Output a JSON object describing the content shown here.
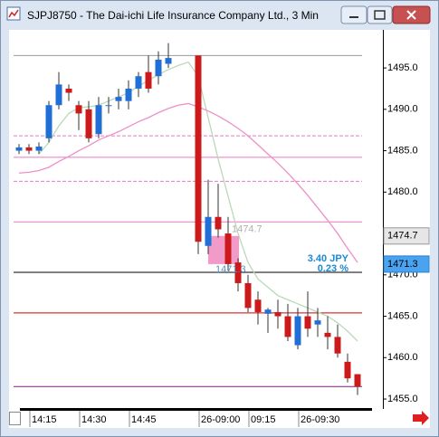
{
  "chart_data": {
    "type": "candlestick",
    "title": "SJPJ8750 - The Dai-ichi Life Insurance Company Ltd., 3 Min",
    "categories": [
      null,
      "14:15",
      null,
      null,
      null,
      null,
      "14:30",
      null,
      null,
      null,
      null,
      "14:45",
      null,
      null,
      null,
      null,
      null,
      null,
      "26-09:00",
      null,
      null,
      null,
      null,
      "09:15",
      null,
      null,
      null,
      null,
      "26-09:30",
      null,
      null,
      null,
      null,
      null,
      null
    ],
    "open": [
      1485.0,
      1485.4,
      1485.0,
      1486.5,
      1490.5,
      1492.5,
      1490.5,
      1490.0,
      1487.0,
      1490.5,
      1491.0,
      1491.0,
      1492.5,
      1494.5,
      1494.0,
      1495.5,
      null,
      null,
      1496.5,
      1473.5,
      1477.0,
      1475.0,
      1471.5,
      1469.0,
      1467.0,
      1465.3,
      1465.5,
      1465.0,
      1461.5,
      1465.0,
      1464.0,
      1463.0,
      1462.5,
      1459.5,
      1458.0
    ],
    "high": [
      1485.8,
      1485.8,
      1486.0,
      1491.0,
      1494.5,
      1493.0,
      1491.0,
      1491.0,
      1491.5,
      1491.5,
      1492.5,
      1493.5,
      1494.5,
      1496.5,
      1497.0,
      1498.0,
      null,
      null,
      1496.5,
      1481.5,
      1481.0,
      1477.0,
      1472.0,
      1470.0,
      1468.0,
      1466.0,
      1467.0,
      1466.5,
      1466.0,
      1468.0,
      1466.0,
      1465.0,
      1464.0,
      1460.5,
      1458.0
    ],
    "low": [
      1484.6,
      1484.6,
      1484.6,
      1486.0,
      1490.0,
      1491.0,
      1487.5,
      1486.0,
      1486.5,
      1489.5,
      1490.0,
      1490.0,
      1491.5,
      1492.0,
      1493.0,
      1495.0,
      null,
      null,
      1472.5,
      1472.5,
      1474.5,
      1470.5,
      1468.0,
      1465.5,
      1464.0,
      1463.0,
      1463.5,
      1462.0,
      1461.0,
      1462.5,
      1462.5,
      1461.0,
      1460.0,
      1457.0,
      1455.5
    ],
    "close": [
      1485.4,
      1485.0,
      1485.5,
      1490.5,
      1493.0,
      1492.0,
      1489.5,
      1486.5,
      1490.5,
      1490.5,
      1491.5,
      1492.5,
      1494.0,
      1492.5,
      1496.0,
      1496.2,
      null,
      null,
      1474.0,
      1477.0,
      1475.5,
      1471.3,
      1469.0,
      1466.0,
      1465.5,
      1465.8,
      1465.0,
      1462.5,
      1465.0,
      1463.5,
      1464.5,
      1462.5,
      1460.5,
      1457.5,
      1456.5
    ],
    "up_color": "#1f6fd6",
    "down_color": "#cc1a1a",
    "moving_averages": [
      {
        "color": "#b9d9b9",
        "values": [
          null,
          null,
          1484.6,
          1486,
          1488,
          1489.5,
          1490.2,
          1490.3,
          1490.5,
          1491,
          1491.5,
          1492,
          1492.8,
          1493.5,
          1494.2,
          1494.8,
          1495.3,
          1495.7,
          1494,
          1489,
          1484,
          1479.5,
          1475,
          1471.5,
          1469.5,
          1468.5,
          1467.5,
          1467,
          1466.5,
          1466,
          1465.5,
          1465,
          1464.2,
          1463.2,
          1462
        ]
      },
      {
        "color": "#ee8fc8",
        "values": [
          1482.3,
          1482.4,
          1482.6,
          1483,
          1483.7,
          1484.3,
          1485,
          1485.6,
          1486.3,
          1486.8,
          1487.3,
          1487.9,
          1488.5,
          1489,
          1489.6,
          1490.1,
          1490.5,
          1490.7,
          1490.3,
          1489.8,
          1489.2,
          1488.5,
          1487.7,
          1486.8,
          1485.7,
          1484.6,
          1483.5,
          1482.3,
          1481,
          1479.6,
          1478.1,
          1476.6,
          1475,
          1473.2,
          1471.5
        ]
      }
    ],
    "levels": [
      {
        "value": 1496.5,
        "color": "#9a9a9a",
        "dashed": false
      },
      {
        "value": 1486.8,
        "color": "#e77bbf",
        "dashed": true
      },
      {
        "value": 1484.2,
        "color": "#e77bbf",
        "dashed": false
      },
      {
        "value": 1481.3,
        "color": "#e77bbf",
        "dashed": true
      },
      {
        "value": 1476.4,
        "color": "#e77bbf",
        "dashed": false
      },
      {
        "value": 1470.3,
        "color": "#000000",
        "dashed": false
      },
      {
        "value": 1465.4,
        "color": "#d00000",
        "dashed": false
      },
      {
        "value": 1456.5,
        "color": "#7a1f7a",
        "dashed": false
      }
    ],
    "measure": {
      "from": 1474.7,
      "to": 1471.3,
      "change": "3.40 JPY",
      "percent": "0.23 %",
      "color": "#f29bc9"
    },
    "ylim": [
      1453.8,
      1499.6
    ],
    "yticks": [
      {
        "value": 1455,
        "label": "1455.0"
      },
      {
        "value": 1460,
        "label": "1460.0"
      },
      {
        "value": 1465,
        "label": "1465.0"
      },
      {
        "value": 1470,
        "label": "1470.0"
      },
      {
        "value": 1480,
        "label": "1480.0"
      },
      {
        "value": 1485,
        "label": "1485.0"
      },
      {
        "value": 1490,
        "label": "1490.0"
      },
      {
        "value": 1495,
        "label": "1495.0"
      }
    ]
  }
}
